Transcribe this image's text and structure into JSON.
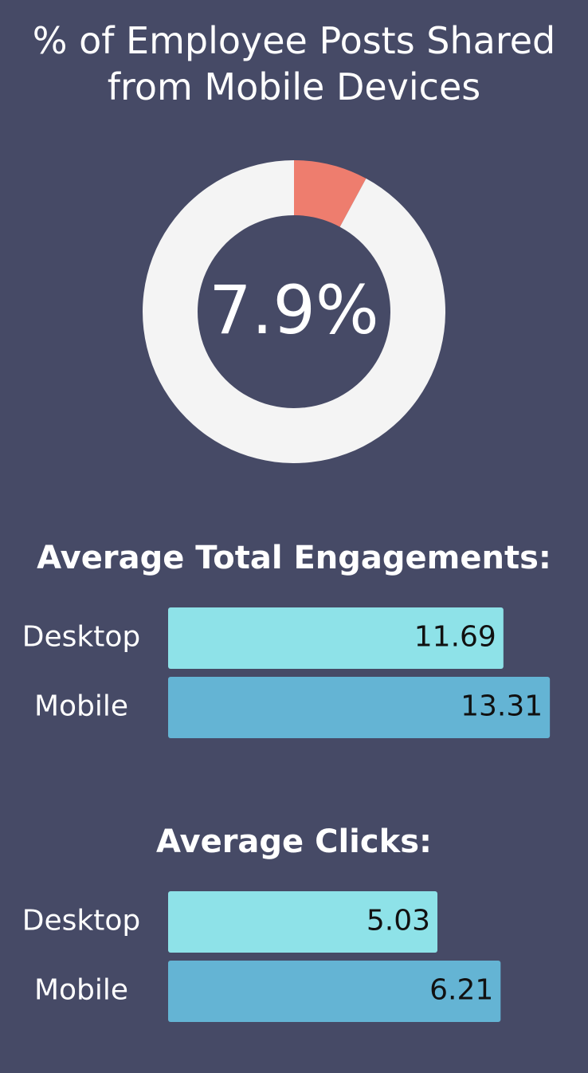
{
  "chart_data": [
    {
      "type": "pie",
      "title": "% of Employee Posts Shared from Mobile Devices",
      "values": [
        7.9,
        92.1
      ],
      "value_labels": [
        "7.9%",
        null
      ],
      "colors": [
        "#ee7d6e",
        "#f4f4f4"
      ]
    },
    {
      "type": "bar",
      "orientation": "horizontal",
      "title": "Average Total Engagements:",
      "categories": [
        "Desktop",
        "Mobile"
      ],
      "values": [
        11.69,
        13.31
      ],
      "colors": [
        "#8ee2e8",
        "#64b4d4"
      ],
      "xlim": [
        0,
        14
      ]
    },
    {
      "type": "bar",
      "orientation": "horizontal",
      "title": "Average Clicks:",
      "categories": [
        "Desktop",
        "Mobile"
      ],
      "values": [
        5.03,
        6.21
      ],
      "colors": [
        "#8ee2e8",
        "#64b4d4"
      ],
      "xlim": [
        0,
        7.5
      ]
    }
  ]
}
